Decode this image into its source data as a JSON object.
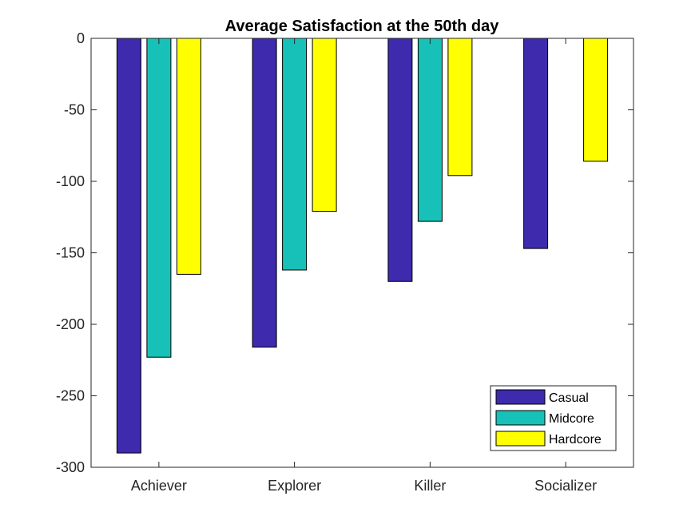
{
  "chart_data": {
    "type": "bar",
    "title": "Average Satisfaction at the 50th day",
    "xlabel": "",
    "ylabel": "",
    "categories": [
      "Achiever",
      "Explorer",
      "Killer",
      "Socializer"
    ],
    "series": [
      {
        "name": "Casual",
        "color": "#3d2aac",
        "values": [
          -290,
          -216,
          -170,
          -147
        ]
      },
      {
        "name": "Midcore",
        "color": "#17c1b8",
        "values": [
          -223,
          -162,
          -128,
          null
        ]
      },
      {
        "name": "Hardcore",
        "color": "#ffff00",
        "values": [
          -165,
          -121,
          -96,
          -86
        ]
      }
    ],
    "ylim": [
      -300,
      0
    ],
    "yticks": [
      0,
      -50,
      -100,
      -150,
      -200,
      -250,
      -300
    ],
    "ytick_labels": [
      "0",
      "-50",
      "-100",
      "-150",
      "-200",
      "-250",
      "-300"
    ],
    "grid": false,
    "legend_position": "bottom-right"
  }
}
